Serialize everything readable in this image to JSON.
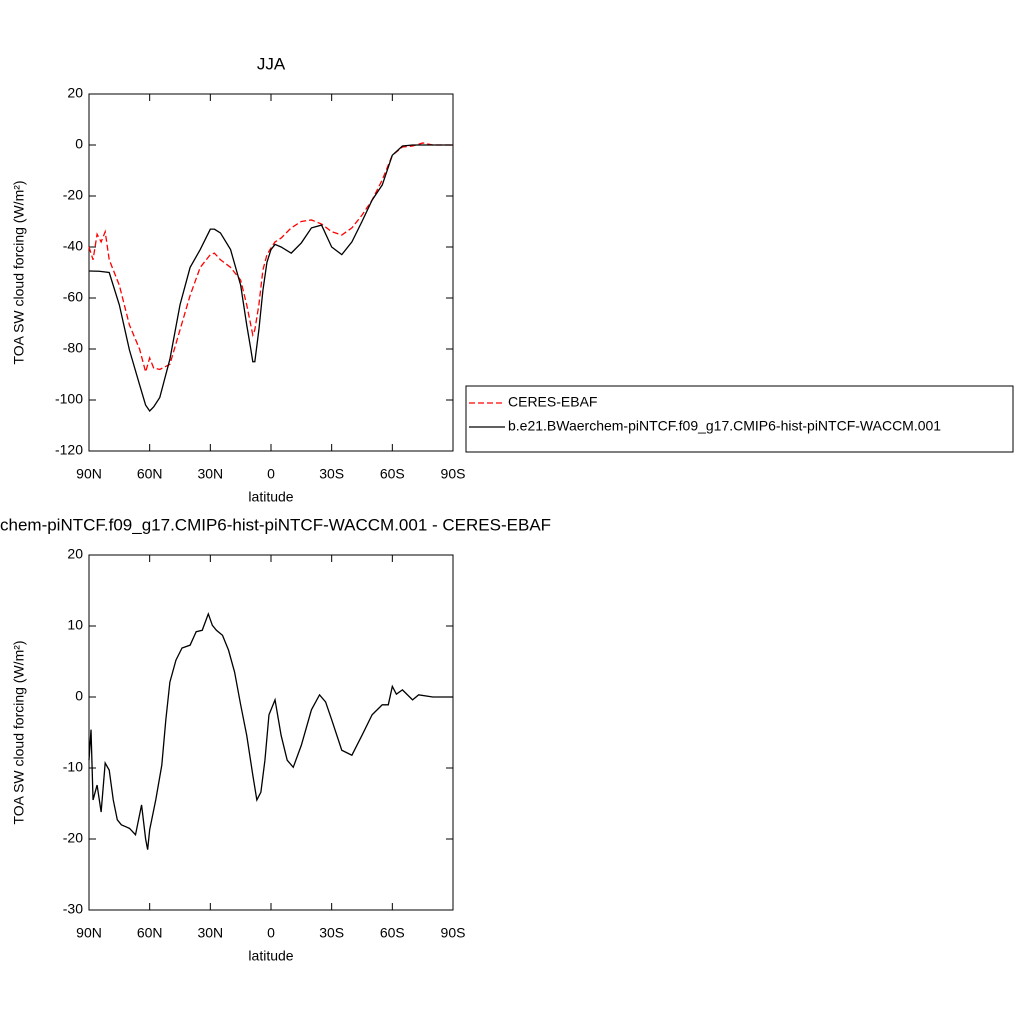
{
  "chart_data": [
    {
      "type": "line",
      "title": "JJA",
      "x_label": "latitude",
      "y_label": "TOA SW cloud forcing (W/m²)",
      "xlim": [
        90,
        -90
      ],
      "xticks": [
        {
          "value": 90,
          "label": "90N"
        },
        {
          "value": 60,
          "label": "60N"
        },
        {
          "value": 30,
          "label": "30N"
        },
        0,
        {
          "value": -30,
          "label": "30S"
        },
        {
          "value": -60,
          "label": "60S"
        },
        {
          "value": -90,
          "label": "90S"
        }
      ],
      "ylim": [
        -120,
        20
      ],
      "yticks": [
        -120,
        -100,
        -80,
        -60,
        -40,
        -20,
        0,
        20
      ],
      "legend": "right",
      "series": [
        {
          "name": "CERES-EBAF",
          "color": "#ff0000",
          "dashed": true,
          "x": [
            90,
            88,
            86,
            84,
            82,
            80,
            75,
            70,
            65,
            62,
            60,
            58,
            55,
            50,
            45,
            40,
            35,
            30,
            28,
            25,
            20,
            15,
            12,
            10,
            9,
            8,
            6,
            4,
            2,
            0,
            -2,
            -5,
            -10,
            -15,
            -20,
            -25,
            -30,
            -35,
            -40,
            -45,
            -50,
            -55,
            -60,
            -65,
            -70,
            -75,
            -80,
            -85,
            -90
          ],
          "values": [
            -40,
            -45,
            -35,
            -38,
            -34,
            -45,
            -55,
            -70.6,
            -80,
            -89,
            -83.5,
            -87.5,
            -88,
            -86,
            -72.5,
            -59,
            -48,
            -43,
            -42.4,
            -45,
            -48,
            -53,
            -62.7,
            -70.6,
            -74.5,
            -72.5,
            -62.7,
            -49,
            -43,
            -40.4,
            -38,
            -36.5,
            -32.5,
            -30,
            -29.4,
            -31,
            -34,
            -35.3,
            -32.5,
            -27.5,
            -21.6,
            -13.7,
            -4,
            -0.8,
            -0.4,
            0.8,
            0,
            0,
            0
          ]
        },
        {
          "name": "b.e21.BWaerchem-piNTCF.f09_g17.CMIP6-hist-piNTCF-WACCM.001",
          "color": "#000000",
          "dashed": false,
          "x": [
            90,
            85,
            80,
            75,
            70,
            65,
            62,
            60,
            58,
            55,
            50,
            45,
            40,
            35,
            30,
            28,
            25,
            20,
            15,
            12,
            10,
            9,
            8,
            6,
            4,
            2,
            0,
            -2,
            -5,
            -10,
            -15,
            -20,
            -25,
            -30,
            -35,
            -40,
            -45,
            -50,
            -55,
            -60,
            -65,
            -70,
            -75,
            -80,
            -85,
            -90
          ],
          "values": [
            -49.4,
            -49.5,
            -50,
            -62.7,
            -80.4,
            -94,
            -102,
            -104.3,
            -102.7,
            -99,
            -84,
            -62.7,
            -48,
            -41,
            -33,
            -33,
            -34.5,
            -41,
            -55,
            -70.6,
            -80,
            -85,
            -85,
            -72.5,
            -57,
            -46,
            -41,
            -39,
            -40,
            -42.4,
            -38.4,
            -32.5,
            -31.4,
            -40,
            -43,
            -38,
            -30,
            -21.6,
            -15.7,
            -4,
            -0.4,
            0,
            0,
            0,
            0,
            0
          ]
        }
      ]
    },
    {
      "type": "line",
      "title": "chem-piNTCF.f09_g17.CMIP6-hist-piNTCF-WACCM.001 - CERES-EBAF",
      "x_label": "latitude",
      "y_label": "TOA SW cloud forcing (W/m²)",
      "xlim": [
        90,
        -90
      ],
      "xticks": [
        {
          "value": 90,
          "label": "90N"
        },
        {
          "value": 60,
          "label": "60N"
        },
        {
          "value": 30,
          "label": "30N"
        },
        0,
        {
          "value": -30,
          "label": "30S"
        },
        {
          "value": -60,
          "label": "60S"
        },
        {
          "value": -90,
          "label": "90S"
        }
      ],
      "ylim": [
        -30,
        20
      ],
      "yticks": [
        -30,
        -20,
        -10,
        0,
        10,
        20
      ],
      "series": [
        {
          "color": "#000000",
          "dashed": false,
          "x": [
            90,
            89,
            88,
            86,
            84,
            82,
            80,
            78,
            76,
            74,
            70,
            67,
            64,
            62,
            61,
            60,
            57,
            54,
            52,
            50,
            47,
            44,
            40,
            37,
            34,
            31,
            29,
            27,
            24,
            21,
            18,
            15,
            12,
            9,
            7,
            5,
            3,
            1,
            -2,
            -5,
            -8,
            -11,
            -15,
            -20,
            -24,
            -27,
            -30,
            -35,
            -40,
            -45,
            -50,
            -55,
            -58,
            -60,
            -62,
            -65,
            -70,
            -73,
            -80,
            -90
          ],
          "values": [
            -8.9,
            -4.6,
            -14.5,
            -12.4,
            -16.2,
            -9.3,
            -10.3,
            -14.5,
            -17.3,
            -18,
            -18.5,
            -19.4,
            -15.2,
            -20,
            -21.5,
            -18.7,
            -14.5,
            -9.6,
            -3.2,
            2.1,
            5.2,
            6.9,
            7.3,
            9.2,
            9.4,
            11.7,
            10.1,
            9.4,
            8.7,
            6.6,
            3.5,
            -1.1,
            -5.4,
            -11,
            -14.5,
            -13.4,
            -8.9,
            -2.5,
            -0.4,
            -5.4,
            -8.9,
            -9.9,
            -6.8,
            -1.8,
            0.3,
            -0.7,
            -3.2,
            -7.5,
            -8.2,
            -5.4,
            -2.5,
            -1.1,
            -1.1,
            1.5,
            0.4,
            1,
            -0.4,
            0.3,
            0,
            0
          ]
        }
      ]
    }
  ]
}
